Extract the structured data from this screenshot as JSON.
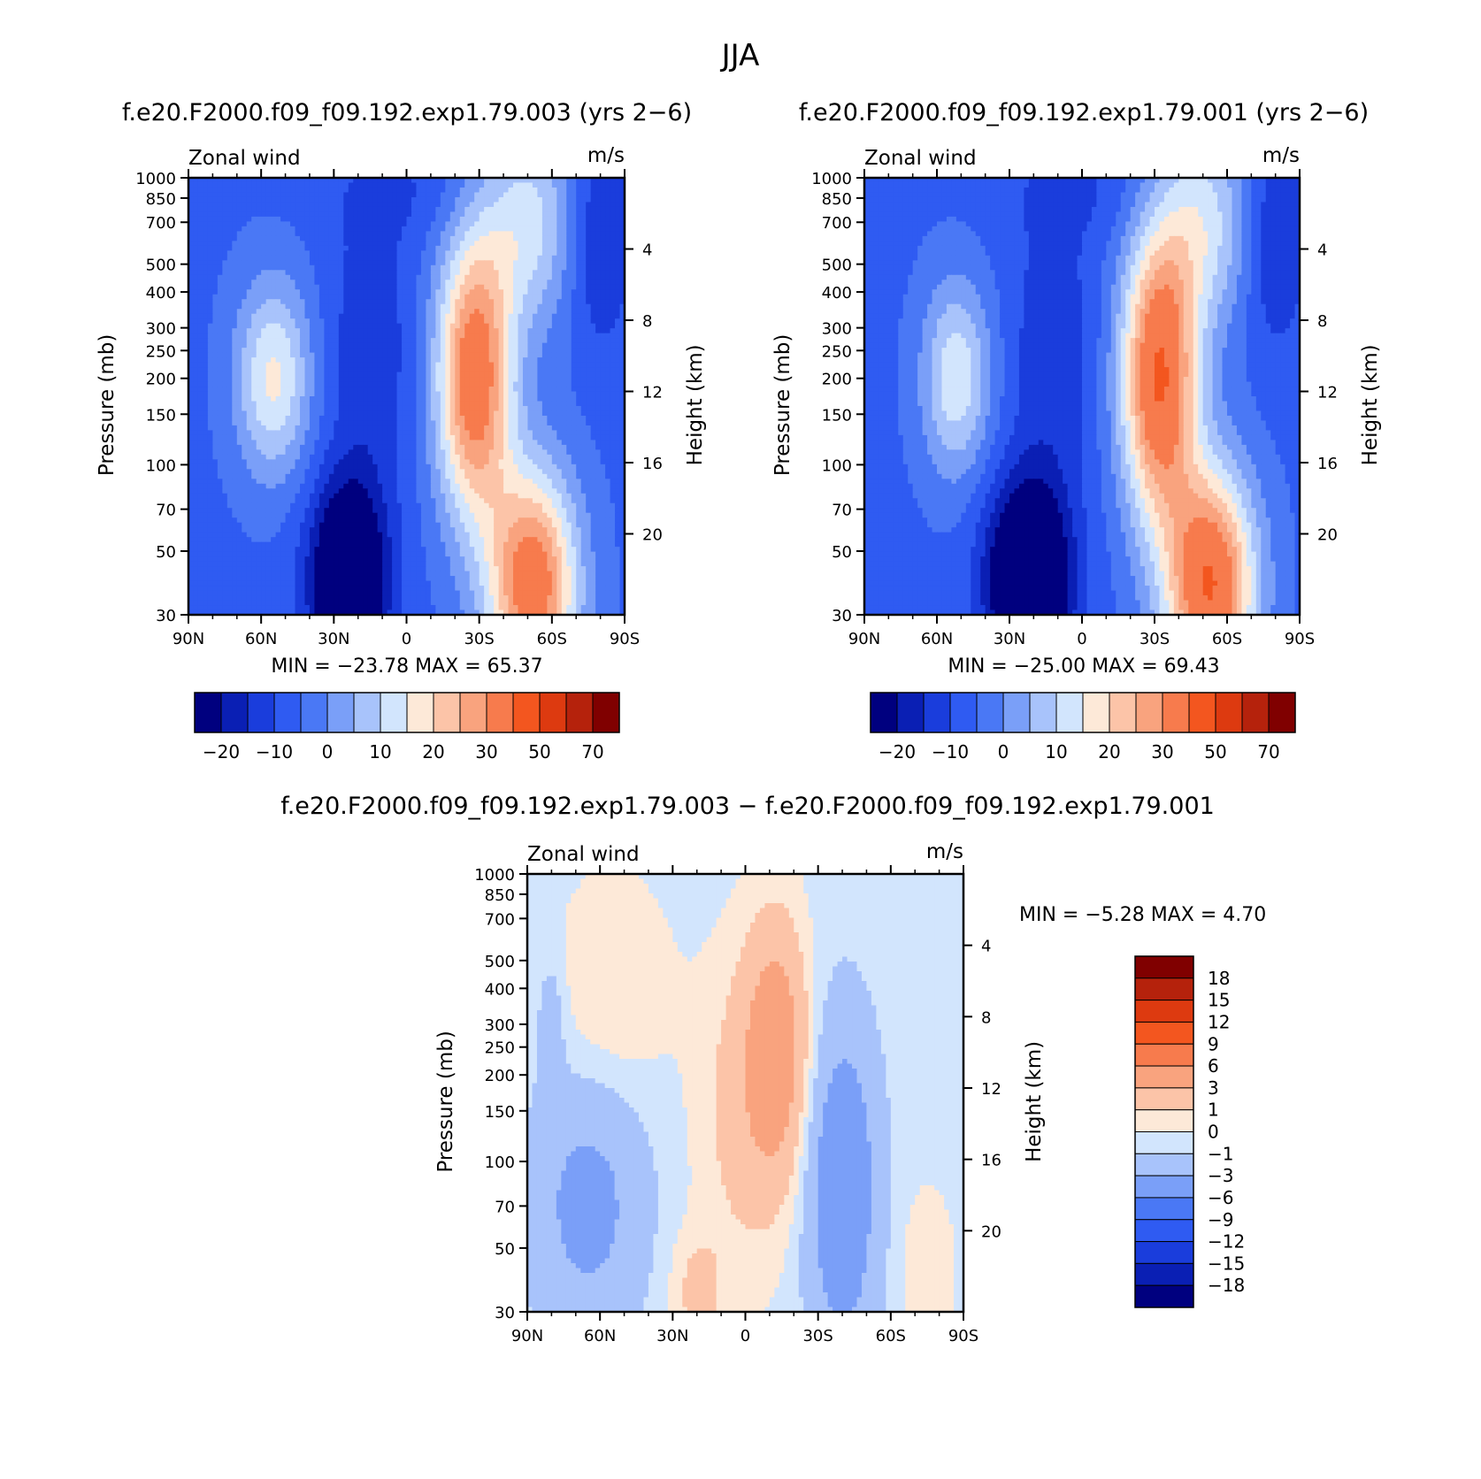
{
  "figure": {
    "title": "JJA",
    "colors": {
      "background": "#ffffff",
      "frame": "#000000"
    }
  },
  "palettes": {
    "absolute": [
      "#00007f",
      "#0a1fb4",
      "#1a3ddc",
      "#2f5bf2",
      "#4a78f5",
      "#7a9ff8",
      "#a8c3fb",
      "#d2e5fd",
      "#fde9d8",
      "#fcc4a8",
      "#f9a37e",
      "#f77b4d",
      "#f3561f",
      "#dd3a10",
      "#b5220c",
      "#800000"
    ],
    "difference": [
      "#00007f",
      "#0a1fb4",
      "#1a3ddc",
      "#2f5bf2",
      "#4a78f5",
      "#7a9ff8",
      "#a8c3fb",
      "#d2e5fd",
      "#fde9d8",
      "#fcc4a8",
      "#f9a37e",
      "#f77b4d",
      "#f3561f",
      "#dd3a10",
      "#b5220c",
      "#800000"
    ]
  },
  "chart_data": [
    {
      "id": "panel_a",
      "type": "contour",
      "title": "f.e20.F2000.f09_f09.192.exp1.79.003 (yrs 2−6)",
      "left_label": "Zonal wind",
      "units": "m/s",
      "xlabel": "",
      "ylabel": "Pressure (mb)",
      "y2label": "Height (km)",
      "x_ticks": [
        "90N",
        "60N",
        "30N",
        "0",
        "30S",
        "60S",
        "90S"
      ],
      "x_range": [
        -90,
        90
      ],
      "y_ticks": [
        30,
        50,
        70,
        100,
        150,
        200,
        250,
        300,
        400,
        500,
        700,
        850,
        1000
      ],
      "y_range_mb": [
        1000,
        30
      ],
      "height_ticks_km": [
        4,
        8,
        12,
        16,
        20
      ],
      "stats": "MIN =  −23.78   MAX =   65.37",
      "min": -23.78,
      "max": 65.37,
      "levels": [
        -25,
        -20,
        -15,
        -10,
        -5,
        0,
        5,
        10,
        15,
        20,
        25,
        30,
        40,
        50,
        60,
        70
      ],
      "colorbar_labels": [
        "−20",
        "−10",
        "0",
        "10",
        "20",
        "30",
        "50",
        "70"
      ],
      "field": [
        {
          "lat": 55,
          "p": 200,
          "amp": 22,
          "sx": 11,
          "sy": 0.55
        },
        {
          "lat": 24,
          "p": 40,
          "amp": -32,
          "sx": 11,
          "sy": 0.55
        },
        {
          "lat": 15,
          "p": 250,
          "amp": -8,
          "sx": 12,
          "sy": 0.8
        },
        {
          "lat": -28,
          "p": 200,
          "amp": 42,
          "sx": 11,
          "sy": 0.8
        },
        {
          "lat": -52,
          "p": 38,
          "amp": 42,
          "sx": 13,
          "sy": 0.65
        },
        {
          "lat": -50,
          "p": 700,
          "amp": 18,
          "sx": 14,
          "sy": 0.6
        },
        {
          "lat": -80,
          "p": 600,
          "amp": -10,
          "sx": 9,
          "sy": 0.6
        },
        {
          "lat": 0,
          "p": 900,
          "amp": -4,
          "sx": 25,
          "sy": 0.3
        }
      ],
      "field_base": -6
    },
    {
      "id": "panel_b",
      "type": "contour",
      "title": "f.e20.F2000.f09_f09.192.exp1.79.001 (yrs 2−6)",
      "left_label": "Zonal wind",
      "units": "m/s",
      "xlabel": "",
      "ylabel": "Pressure (mb)",
      "y2label": "Height (km)",
      "x_ticks": [
        "90N",
        "60N",
        "30N",
        "0",
        "30S",
        "60S",
        "90S"
      ],
      "x_range": [
        -90,
        90
      ],
      "y_ticks": [
        30,
        50,
        70,
        100,
        150,
        200,
        250,
        300,
        400,
        500,
        700,
        850,
        1000
      ],
      "y_range_mb": [
        1000,
        30
      ],
      "height_ticks_km": [
        4,
        8,
        12,
        16,
        20
      ],
      "stats": "MIN =  −25.00   MAX =   69.43",
      "min": -25.0,
      "max": 69.43,
      "levels": [
        -25,
        -20,
        -15,
        -10,
        -5,
        0,
        5,
        10,
        15,
        20,
        25,
        30,
        40,
        50,
        60,
        70
      ],
      "colorbar_labels": [
        "−20",
        "−10",
        "0",
        "10",
        "20",
        "30",
        "50",
        "70"
      ],
      "field": [
        {
          "lat": 52,
          "p": 200,
          "amp": 20,
          "sx": 10,
          "sy": 0.55
        },
        {
          "lat": 22,
          "p": 40,
          "amp": -34,
          "sx": 12,
          "sy": 0.55
        },
        {
          "lat": 12,
          "p": 250,
          "amp": -8,
          "sx": 12,
          "sy": 0.8
        },
        {
          "lat": -32,
          "p": 200,
          "amp": 46,
          "sx": 11,
          "sy": 0.8
        },
        {
          "lat": -53,
          "p": 38,
          "amp": 46,
          "sx": 13,
          "sy": 0.65
        },
        {
          "lat": -50,
          "p": 700,
          "amp": 18,
          "sx": 14,
          "sy": 0.6
        },
        {
          "lat": -80,
          "p": 600,
          "amp": -10,
          "sx": 9,
          "sy": 0.6
        },
        {
          "lat": 0,
          "p": 900,
          "amp": -4,
          "sx": 25,
          "sy": 0.3
        }
      ],
      "field_base": -6
    },
    {
      "id": "panel_diff",
      "type": "contour",
      "title": "f.e20.F2000.f09_f09.192.exp1.79.003 − f.e20.F2000.f09_f09.192.exp1.79.001",
      "left_label": "Zonal wind",
      "units": "m/s",
      "xlabel": "",
      "ylabel": "Pressure (mb)",
      "y2label": "Height (km)",
      "x_ticks": [
        "90N",
        "60N",
        "30N",
        "0",
        "30S",
        "60S",
        "90S"
      ],
      "x_range": [
        -90,
        90
      ],
      "y_ticks": [
        30,
        50,
        70,
        100,
        150,
        200,
        250,
        300,
        400,
        500,
        700,
        850,
        1000
      ],
      "y_range_mb": [
        1000,
        30
      ],
      "height_ticks_km": [
        4,
        8,
        12,
        16,
        20
      ],
      "stats": "MIN =    −5.28   MAX =     4.70",
      "min": -5.28,
      "max": 4.7,
      "levels": [
        -21,
        -18,
        -15,
        -12,
        -9,
        -6,
        -3,
        -1,
        0,
        1,
        3,
        6,
        9,
        12,
        15,
        18
      ],
      "colorbar_labels": [
        "18",
        "15",
        "12",
        "9",
        "6",
        "3",
        "1",
        "0",
        "−1",
        "−3",
        "−6",
        "−9",
        "−12",
        "−15",
        "−18"
      ],
      "field": [
        {
          "lat": 65,
          "p": 70,
          "amp": -3.5,
          "sx": 16,
          "sy": 0.7
        },
        {
          "lat": -40,
          "p": 80,
          "amp": -5.2,
          "sx": 10,
          "sy": 0.9
        },
        {
          "lat": -13,
          "p": 250,
          "amp": 4.6,
          "sx": 9,
          "sy": 0.7
        },
        {
          "lat": 0,
          "p": 150,
          "amp": 2.0,
          "sx": 14,
          "sy": 0.9
        },
        {
          "lat": 55,
          "p": 400,
          "amp": 1.5,
          "sx": 16,
          "sy": 0.6
        },
        {
          "lat": 20,
          "p": 35,
          "amp": 1.8,
          "sx": 8,
          "sy": 0.35
        },
        {
          "lat": -75,
          "p": 40,
          "amp": 1.2,
          "sx": 8,
          "sy": 0.5
        },
        {
          "lat": 80,
          "p": 300,
          "amp": -1.6,
          "sx": 4,
          "sy": 0.4
        }
      ],
      "field_base": -0.4
    }
  ]
}
